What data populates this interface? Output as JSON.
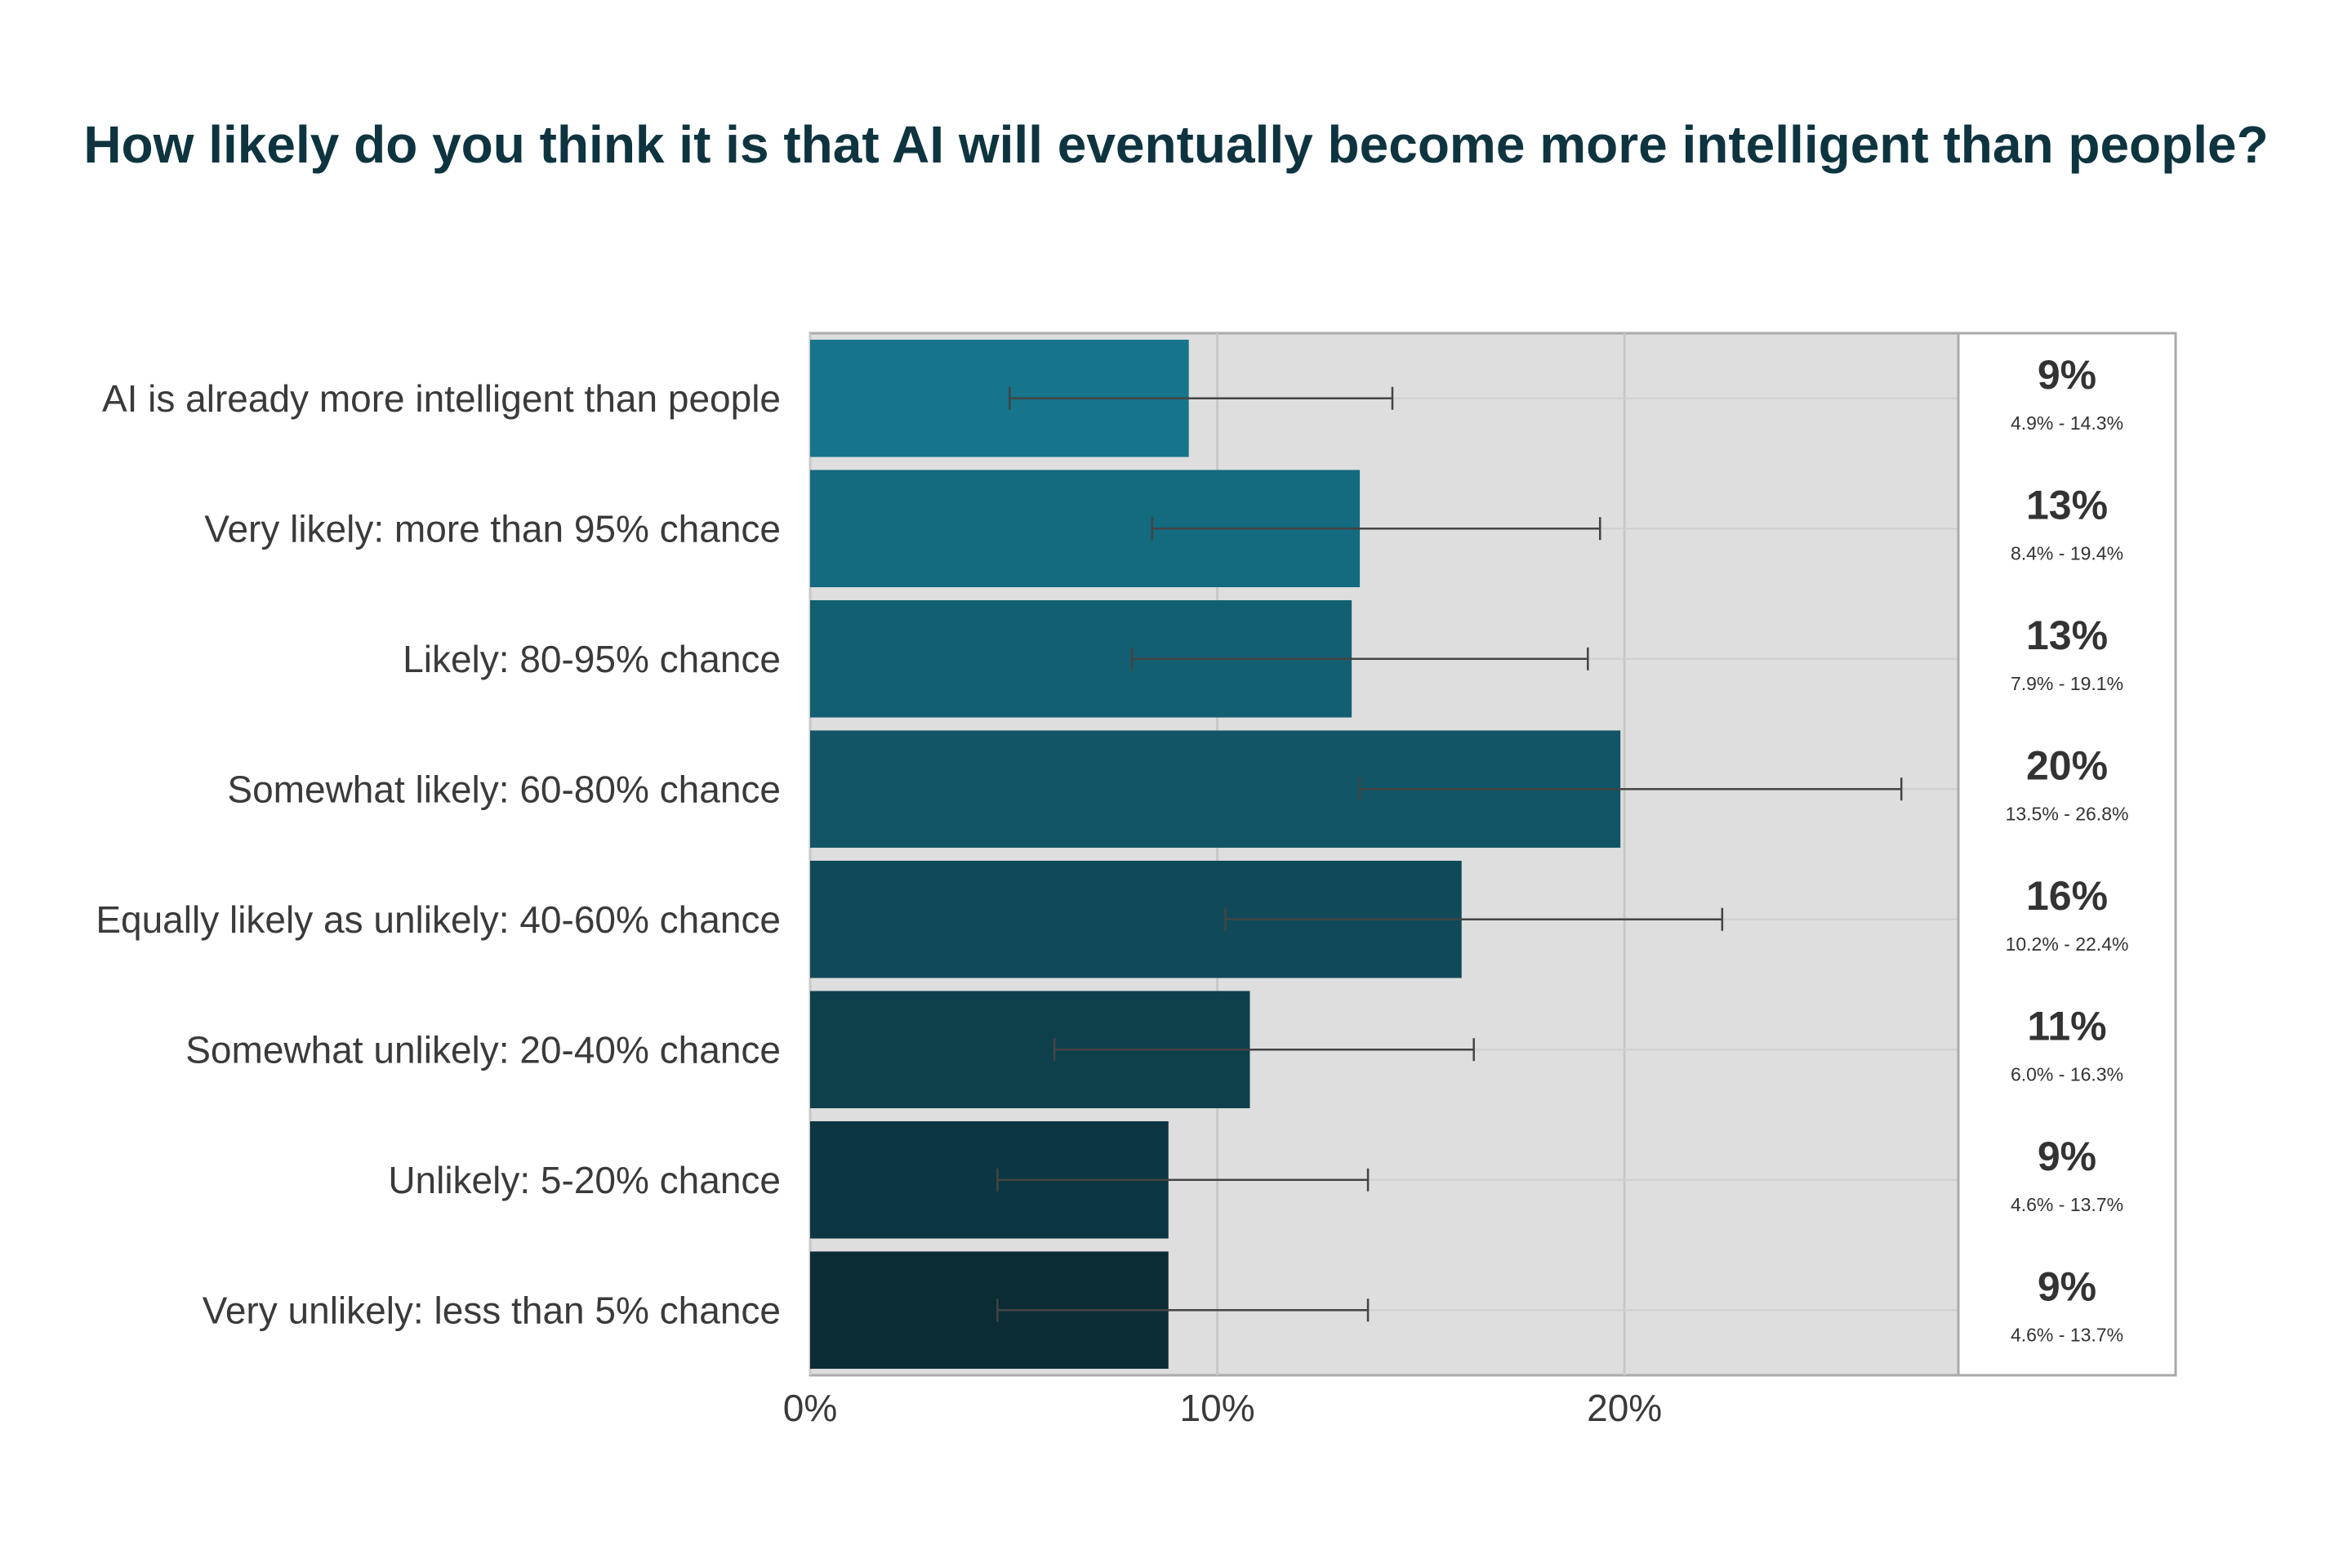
{
  "chart_data": {
    "type": "bar",
    "orientation": "horizontal",
    "title": "How likely do you think it is that AI will eventually become more intelligent than people?",
    "categories": [
      "AI is already more intelligent than people",
      "Very likely: more than 95% chance",
      "Likely: 80-95% chance",
      "Somewhat likely: 60-80% chance",
      "Equally likely as unlikely: 40-60% chance",
      "Somewhat unlikely: 20-40% chance",
      "Unlikely: 5-20% chance",
      "Very unlikely: less than 5% chance"
    ],
    "values": [
      9.3,
      13.5,
      13.3,
      19.9,
      16.0,
      10.8,
      8.8,
      8.8
    ],
    "ci_low": [
      4.9,
      8.4,
      7.9,
      13.5,
      10.2,
      6.0,
      4.6,
      4.6
    ],
    "ci_high": [
      14.3,
      19.4,
      19.1,
      26.8,
      22.4,
      16.3,
      13.7,
      13.7
    ],
    "value_labels": [
      "9%",
      "13%",
      "13%",
      "20%",
      "16%",
      "11%",
      "9%",
      "9%"
    ],
    "ci_labels": [
      "4.9% - 14.3%",
      "8.4% - 19.4%",
      "7.9% - 19.1%",
      "13.5% - 26.8%",
      "10.2% - 22.4%",
      "6.0% - 16.3%",
      "4.6% - 13.7%",
      "4.6% - 13.7%"
    ],
    "x_ticks": [
      0,
      10,
      20
    ],
    "x_tick_labels": [
      "0%",
      "10%",
      "20%"
    ],
    "xlim": [
      0,
      28.2
    ],
    "grid": true,
    "colors": [
      "#16758a",
      "#146a7e",
      "#135f72",
      "#125566",
      "#104a58",
      "#0e404c",
      "#0c3641",
      "#0b2c35"
    ],
    "panel_color": "#dedede"
  }
}
